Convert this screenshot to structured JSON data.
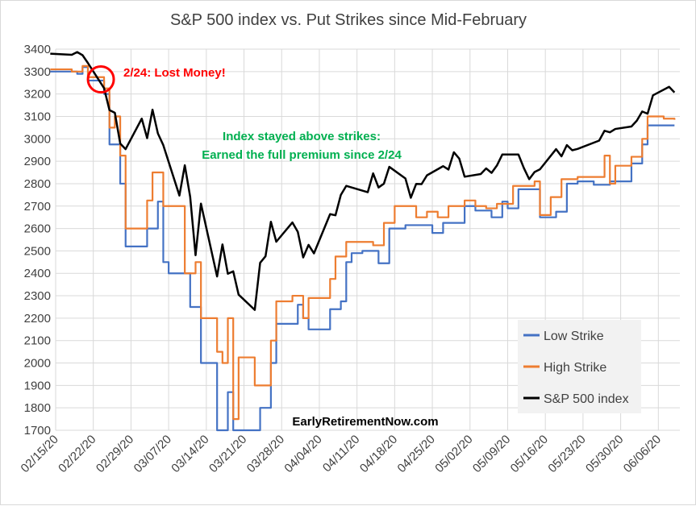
{
  "chart_data": {
    "type": "line",
    "title": "S&P 500 index vs. Put Strikes since Mid-February",
    "xlabel": "",
    "ylabel": "",
    "ylim": [
      1700,
      3400
    ],
    "yticks": [
      1700,
      1800,
      1900,
      2000,
      2100,
      2200,
      2300,
      2400,
      2500,
      2600,
      2700,
      2800,
      2900,
      3000,
      3100,
      3200,
      3300,
      3400
    ],
    "x_tick_labels": [
      "02/15/20",
      "02/22/20",
      "02/29/20",
      "03/07/20",
      "03/14/20",
      "03/21/20",
      "03/28/20",
      "04/04/20",
      "04/11/20",
      "04/18/20",
      "04/25/20",
      "05/02/20",
      "05/09/20",
      "05/16/20",
      "05/23/20",
      "05/30/20",
      "06/06/20"
    ],
    "x_start": "02/15/20",
    "x_end": "06/10/20",
    "grid": true,
    "legend_position": "bottom-right",
    "colors": {
      "low": "#4472c4",
      "high": "#ed7d31",
      "spx": "#000000",
      "circle": "#ff0000",
      "annotation_red": "#ff0000",
      "annotation_green": "#00b050"
    },
    "annotations": {
      "lost": "2/24: Lost Money!",
      "stayed_line1": "Index stayed above strikes:",
      "stayed_line2": "Earned the full premium since 2/24",
      "watermark": "EarlyRetirementNow.com"
    },
    "series": [
      {
        "name": "Low Strike",
        "step": true,
        "points": [
          [
            "02/14/20",
            3300
          ],
          [
            "02/19/20",
            3290
          ],
          [
            "02/20/20",
            3320
          ],
          [
            "02/21/20",
            3260
          ],
          [
            "02/24/20",
            3200
          ],
          [
            "02/25/20",
            2975
          ],
          [
            "02/27/20",
            2800
          ],
          [
            "02/28/20",
            2520
          ],
          [
            "03/03/20",
            2600
          ],
          [
            "03/05/20",
            2720
          ],
          [
            "03/06/20",
            2450
          ],
          [
            "03/07/20",
            2400
          ],
          [
            "03/11/20",
            2250
          ],
          [
            "03/13/20",
            2000
          ],
          [
            "03/16/20",
            1700
          ],
          [
            "03/18/20",
            1870
          ],
          [
            "03/19/20",
            1700
          ],
          [
            "03/24/20",
            1800
          ],
          [
            "03/26/20",
            2000
          ],
          [
            "03/27/20",
            2175
          ],
          [
            "03/31/20",
            2260
          ],
          [
            "04/01/20",
            2200
          ],
          [
            "04/02/20",
            2150
          ],
          [
            "04/06/20",
            2240
          ],
          [
            "04/08/20",
            2275
          ],
          [
            "04/09/20",
            2450
          ],
          [
            "04/10/20",
            2490
          ],
          [
            "04/12/20",
            2500
          ],
          [
            "04/15/20",
            2445
          ],
          [
            "04/17/20",
            2600
          ],
          [
            "04/20/20",
            2615
          ],
          [
            "04/25/20",
            2580
          ],
          [
            "04/27/20",
            2625
          ],
          [
            "05/01/20",
            2700
          ],
          [
            "05/03/20",
            2680
          ],
          [
            "05/06/20",
            2650
          ],
          [
            "05/08/20",
            2720
          ],
          [
            "05/09/20",
            2690
          ],
          [
            "05/11/20",
            2775
          ],
          [
            "05/15/20",
            2650
          ],
          [
            "05/18/20",
            2675
          ],
          [
            "05/20/20",
            2800
          ],
          [
            "05/22/20",
            2810
          ],
          [
            "05/25/20",
            2795
          ],
          [
            "05/28/20",
            2810
          ],
          [
            "06/01/20",
            2890
          ],
          [
            "06/03/20",
            2975
          ],
          [
            "06/04/20",
            3060
          ],
          [
            "06/09/20",
            3060
          ]
        ]
      },
      {
        "name": "High Strike",
        "step": true,
        "points": [
          [
            "02/14/20",
            3310
          ],
          [
            "02/18/20",
            3300
          ],
          [
            "02/20/20",
            3325
          ],
          [
            "02/21/20",
            3275
          ],
          [
            "02/24/20",
            3225
          ],
          [
            "02/25/20",
            3050
          ],
          [
            "02/26/20",
            3100
          ],
          [
            "02/27/20",
            2925
          ],
          [
            "02/28/20",
            2600
          ],
          [
            "03/03/20",
            2725
          ],
          [
            "03/04/20",
            2850
          ],
          [
            "03/06/20",
            2700
          ],
          [
            "03/10/20",
            2400
          ],
          [
            "03/12/20",
            2450
          ],
          [
            "03/13/20",
            2200
          ],
          [
            "03/16/20",
            2050
          ],
          [
            "03/17/20",
            2000
          ],
          [
            "03/18/20",
            2200
          ],
          [
            "03/19/20",
            1750
          ],
          [
            "03/20/20",
            2025
          ],
          [
            "03/23/20",
            1900
          ],
          [
            "03/26/20",
            2100
          ],
          [
            "03/27/20",
            2275
          ],
          [
            "03/30/20",
            2300
          ],
          [
            "04/01/20",
            2200
          ],
          [
            "04/02/20",
            2290
          ],
          [
            "04/06/20",
            2375
          ],
          [
            "04/07/20",
            2475
          ],
          [
            "04/09/20",
            2540
          ],
          [
            "04/14/20",
            2525
          ],
          [
            "04/16/20",
            2625
          ],
          [
            "04/18/20",
            2700
          ],
          [
            "04/22/20",
            2650
          ],
          [
            "04/24/20",
            2675
          ],
          [
            "04/26/20",
            2650
          ],
          [
            "04/28/20",
            2700
          ],
          [
            "05/01/20",
            2725
          ],
          [
            "05/03/20",
            2700
          ],
          [
            "05/05/20",
            2690
          ],
          [
            "05/07/20",
            2710
          ],
          [
            "05/10/20",
            2790
          ],
          [
            "05/14/20",
            2810
          ],
          [
            "05/15/20",
            2660
          ],
          [
            "05/17/20",
            2740
          ],
          [
            "05/19/20",
            2820
          ],
          [
            "05/22/20",
            2830
          ],
          [
            "05/25/20",
            2830
          ],
          [
            "05/27/20",
            2925
          ],
          [
            "05/28/20",
            2800
          ],
          [
            "05/29/20",
            2880
          ],
          [
            "06/01/20",
            2920
          ],
          [
            "06/03/20",
            3000
          ],
          [
            "06/04/20",
            3100
          ],
          [
            "06/07/20",
            3090
          ],
          [
            "06/09/20",
            3085
          ]
        ]
      },
      {
        "name": "S&P 500 index",
        "step": false,
        "points": [
          [
            "02/14/20",
            3380
          ],
          [
            "02/18/20",
            3375
          ],
          [
            "02/19/20",
            3387
          ],
          [
            "02/20/20",
            3373
          ],
          [
            "02/21/20",
            3338
          ],
          [
            "02/24/20",
            3226
          ],
          [
            "02/25/20",
            3128
          ],
          [
            "02/26/20",
            3116
          ],
          [
            "02/27/20",
            2979
          ],
          [
            "02/28/20",
            2954
          ],
          [
            "03/02/20",
            3090
          ],
          [
            "03/03/20",
            3003
          ],
          [
            "03/04/20",
            3130
          ],
          [
            "03/05/20",
            3024
          ],
          [
            "03/06/20",
            2972
          ],
          [
            "03/09/20",
            2747
          ],
          [
            "03/10/20",
            2882
          ],
          [
            "03/11/20",
            2741
          ],
          [
            "03/12/20",
            2481
          ],
          [
            "03/13/20",
            2711
          ],
          [
            "03/16/20",
            2386
          ],
          [
            "03/17/20",
            2529
          ],
          [
            "03/18/20",
            2398
          ],
          [
            "03/19/20",
            2409
          ],
          [
            "03/20/20",
            2305
          ],
          [
            "03/23/20",
            2237
          ],
          [
            "03/24/20",
            2447
          ],
          [
            "03/25/20",
            2476
          ],
          [
            "03/26/20",
            2630
          ],
          [
            "03/27/20",
            2541
          ],
          [
            "03/30/20",
            2627
          ],
          [
            "03/31/20",
            2585
          ],
          [
            "04/01/20",
            2471
          ],
          [
            "04/02/20",
            2527
          ],
          [
            "04/03/20",
            2489
          ],
          [
            "04/06/20",
            2664
          ],
          [
            "04/07/20",
            2659
          ],
          [
            "04/08/20",
            2750
          ],
          [
            "04/09/20",
            2790
          ],
          [
            "04/13/20",
            2762
          ],
          [
            "04/14/20",
            2846
          ],
          [
            "04/15/20",
            2783
          ],
          [
            "04/16/20",
            2800
          ],
          [
            "04/17/20",
            2875
          ],
          [
            "04/20/20",
            2823
          ],
          [
            "04/21/20",
            2737
          ],
          [
            "04/22/20",
            2799
          ],
          [
            "04/23/20",
            2798
          ],
          [
            "04/24/20",
            2837
          ],
          [
            "04/27/20",
            2878
          ],
          [
            "04/28/20",
            2863
          ],
          [
            "04/29/20",
            2940
          ],
          [
            "04/30/20",
            2912
          ],
          [
            "05/01/20",
            2831
          ],
          [
            "05/04/20",
            2843
          ],
          [
            "05/05/20",
            2868
          ],
          [
            "05/06/20",
            2848
          ],
          [
            "05/07/20",
            2881
          ],
          [
            "05/08/20",
            2930
          ],
          [
            "05/11/20",
            2930
          ],
          [
            "05/12/20",
            2870
          ],
          [
            "05/13/20",
            2820
          ],
          [
            "05/14/20",
            2852
          ],
          [
            "05/15/20",
            2864
          ],
          [
            "05/18/20",
            2954
          ],
          [
            "05/19/20",
            2922
          ],
          [
            "05/20/20",
            2972
          ],
          [
            "05/21/20",
            2949
          ],
          [
            "05/22/20",
            2955
          ],
          [
            "05/26/20",
            2992
          ],
          [
            "05/27/20",
            3036
          ],
          [
            "05/28/20",
            3029
          ],
          [
            "05/29/20",
            3044
          ],
          [
            "06/01/20",
            3055
          ],
          [
            "06/02/20",
            3081
          ],
          [
            "06/03/20",
            3122
          ],
          [
            "06/04/20",
            3112
          ],
          [
            "06/05/20",
            3194
          ],
          [
            "06/08/20",
            3232
          ],
          [
            "06/09/20",
            3207
          ]
        ]
      }
    ]
  }
}
